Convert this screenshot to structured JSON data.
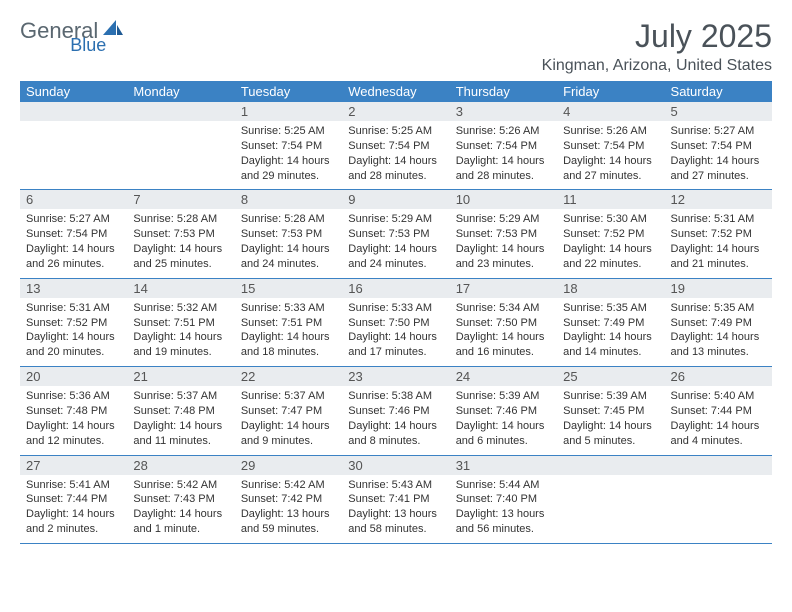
{
  "logo": {
    "text1": "General",
    "text2": "Blue"
  },
  "header": {
    "month_title": "July 2025",
    "location": "Kingman, Arizona, United States"
  },
  "colors": {
    "header_bg": "#3b82c4",
    "header_text": "#ffffff",
    "daynum_bg": "#e9ecef",
    "border": "#3b82c4",
    "logo_gray": "#5a6770",
    "logo_blue": "#2b6fb0"
  },
  "weekdays": [
    "Sunday",
    "Monday",
    "Tuesday",
    "Wednesday",
    "Thursday",
    "Friday",
    "Saturday"
  ],
  "weeks": [
    [
      null,
      null,
      {
        "n": "1",
        "sr": "5:25 AM",
        "ss": "7:54 PM",
        "dl": "14 hours and 29 minutes."
      },
      {
        "n": "2",
        "sr": "5:25 AM",
        "ss": "7:54 PM",
        "dl": "14 hours and 28 minutes."
      },
      {
        "n": "3",
        "sr": "5:26 AM",
        "ss": "7:54 PM",
        "dl": "14 hours and 28 minutes."
      },
      {
        "n": "4",
        "sr": "5:26 AM",
        "ss": "7:54 PM",
        "dl": "14 hours and 27 minutes."
      },
      {
        "n": "5",
        "sr": "5:27 AM",
        "ss": "7:54 PM",
        "dl": "14 hours and 27 minutes."
      }
    ],
    [
      {
        "n": "6",
        "sr": "5:27 AM",
        "ss": "7:54 PM",
        "dl": "14 hours and 26 minutes."
      },
      {
        "n": "7",
        "sr": "5:28 AM",
        "ss": "7:53 PM",
        "dl": "14 hours and 25 minutes."
      },
      {
        "n": "8",
        "sr": "5:28 AM",
        "ss": "7:53 PM",
        "dl": "14 hours and 24 minutes."
      },
      {
        "n": "9",
        "sr": "5:29 AM",
        "ss": "7:53 PM",
        "dl": "14 hours and 24 minutes."
      },
      {
        "n": "10",
        "sr": "5:29 AM",
        "ss": "7:53 PM",
        "dl": "14 hours and 23 minutes."
      },
      {
        "n": "11",
        "sr": "5:30 AM",
        "ss": "7:52 PM",
        "dl": "14 hours and 22 minutes."
      },
      {
        "n": "12",
        "sr": "5:31 AM",
        "ss": "7:52 PM",
        "dl": "14 hours and 21 minutes."
      }
    ],
    [
      {
        "n": "13",
        "sr": "5:31 AM",
        "ss": "7:52 PM",
        "dl": "14 hours and 20 minutes."
      },
      {
        "n": "14",
        "sr": "5:32 AM",
        "ss": "7:51 PM",
        "dl": "14 hours and 19 minutes."
      },
      {
        "n": "15",
        "sr": "5:33 AM",
        "ss": "7:51 PM",
        "dl": "14 hours and 18 minutes."
      },
      {
        "n": "16",
        "sr": "5:33 AM",
        "ss": "7:50 PM",
        "dl": "14 hours and 17 minutes."
      },
      {
        "n": "17",
        "sr": "5:34 AM",
        "ss": "7:50 PM",
        "dl": "14 hours and 16 minutes."
      },
      {
        "n": "18",
        "sr": "5:35 AM",
        "ss": "7:49 PM",
        "dl": "14 hours and 14 minutes."
      },
      {
        "n": "19",
        "sr": "5:35 AM",
        "ss": "7:49 PM",
        "dl": "14 hours and 13 minutes."
      }
    ],
    [
      {
        "n": "20",
        "sr": "5:36 AM",
        "ss": "7:48 PM",
        "dl": "14 hours and 12 minutes."
      },
      {
        "n": "21",
        "sr": "5:37 AM",
        "ss": "7:48 PM",
        "dl": "14 hours and 11 minutes."
      },
      {
        "n": "22",
        "sr": "5:37 AM",
        "ss": "7:47 PM",
        "dl": "14 hours and 9 minutes."
      },
      {
        "n": "23",
        "sr": "5:38 AM",
        "ss": "7:46 PM",
        "dl": "14 hours and 8 minutes."
      },
      {
        "n": "24",
        "sr": "5:39 AM",
        "ss": "7:46 PM",
        "dl": "14 hours and 6 minutes."
      },
      {
        "n": "25",
        "sr": "5:39 AM",
        "ss": "7:45 PM",
        "dl": "14 hours and 5 minutes."
      },
      {
        "n": "26",
        "sr": "5:40 AM",
        "ss": "7:44 PM",
        "dl": "14 hours and 4 minutes."
      }
    ],
    [
      {
        "n": "27",
        "sr": "5:41 AM",
        "ss": "7:44 PM",
        "dl": "14 hours and 2 minutes."
      },
      {
        "n": "28",
        "sr": "5:42 AM",
        "ss": "7:43 PM",
        "dl": "14 hours and 1 minute."
      },
      {
        "n": "29",
        "sr": "5:42 AM",
        "ss": "7:42 PM",
        "dl": "13 hours and 59 minutes."
      },
      {
        "n": "30",
        "sr": "5:43 AM",
        "ss": "7:41 PM",
        "dl": "13 hours and 58 minutes."
      },
      {
        "n": "31",
        "sr": "5:44 AM",
        "ss": "7:40 PM",
        "dl": "13 hours and 56 minutes."
      },
      null,
      null
    ]
  ],
  "labels": {
    "sunrise": "Sunrise: ",
    "sunset": "Sunset: ",
    "daylight": "Daylight: "
  }
}
